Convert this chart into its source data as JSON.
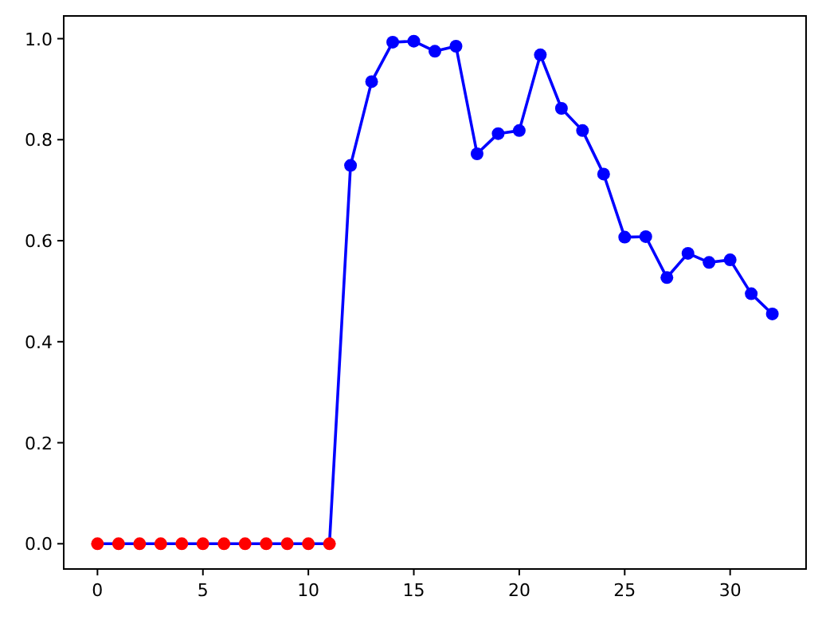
{
  "chart_data": {
    "type": "line",
    "xlim": [
      -1.6,
      33.6
    ],
    "ylim": [
      -0.05,
      1.045
    ],
    "xticks": [
      0,
      5,
      10,
      15,
      20,
      25,
      30
    ],
    "yticks": [
      {
        "value": 0,
        "label": "0.0"
      },
      {
        "value": 0.2,
        "label": "0.2"
      },
      {
        "value": 0.4,
        "label": "0.4"
      },
      {
        "value": 0.6,
        "label": "0.6"
      },
      {
        "value": 0.8,
        "label": "0.8"
      },
      {
        "value": 1,
        "label": "1.0"
      }
    ],
    "grid": false,
    "series": [
      {
        "type": "line",
        "color": "#0000ff",
        "marker": "none",
        "x": [
          0,
          1,
          2,
          3,
          4,
          5,
          6,
          7,
          8,
          9,
          10,
          11,
          12,
          13,
          14,
          15,
          16,
          17,
          18,
          19,
          20,
          21,
          22,
          23,
          24,
          25,
          26,
          27,
          28,
          29,
          30,
          31,
          32
        ],
        "values": [
          0,
          0,
          0,
          0,
          0,
          0,
          0,
          0,
          0,
          0,
          0,
          0,
          0.749,
          0.915,
          0.993,
          0.995,
          0.975,
          0.985,
          0.772,
          0.812,
          0.818,
          0.968,
          0.862,
          0.818,
          0.732,
          0.607,
          0.608,
          0.527,
          0.575,
          0.557,
          0.562,
          0.495,
          0.455
        ]
      },
      {
        "type": "scatter",
        "color": "#0000ff",
        "marker": "circle",
        "x": [
          12,
          13,
          14,
          15,
          16,
          17,
          18,
          19,
          20,
          21,
          22,
          23,
          24,
          25,
          26,
          27,
          28,
          29,
          30,
          31,
          32
        ],
        "values": [
          0.749,
          0.915,
          0.993,
          0.995,
          0.975,
          0.985,
          0.772,
          0.812,
          0.818,
          0.968,
          0.862,
          0.818,
          0.732,
          0.607,
          0.608,
          0.527,
          0.575,
          0.557,
          0.562,
          0.495,
          0.455
        ]
      },
      {
        "type": "scatter",
        "color": "#ff0000",
        "marker": "circle",
        "x": [
          0,
          1,
          2,
          3,
          4,
          5,
          6,
          7,
          8,
          9,
          10,
          11
        ],
        "values": [
          0,
          0,
          0,
          0,
          0,
          0,
          0,
          0,
          0,
          0,
          0,
          0
        ]
      }
    ]
  }
}
